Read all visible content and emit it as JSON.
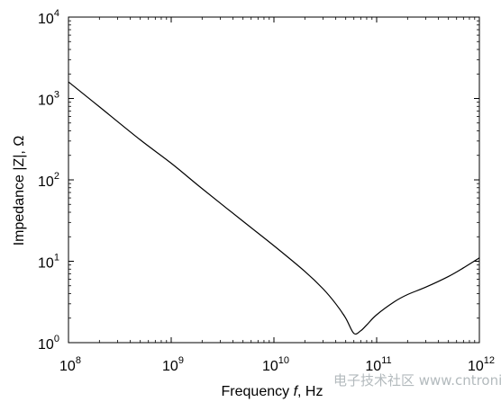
{
  "chart_data": {
    "type": "line",
    "title": "",
    "xlabel_parts": [
      "Frequency ",
      "f",
      ", Hz"
    ],
    "ylabel": "Impedance |Z|, Ω",
    "xscale": "log",
    "yscale": "log",
    "xlim": [
      100000000.0,
      1000000000000.0
    ],
    "ylim": [
      1,
      10000
    ],
    "grid": false,
    "x_ticks": [
      {
        "base": "10",
        "exp": "8"
      },
      {
        "base": "10",
        "exp": "9"
      },
      {
        "base": "10",
        "exp": "10"
      },
      {
        "base": "10",
        "exp": "11"
      },
      {
        "base": "10",
        "exp": "12"
      }
    ],
    "y_ticks": [
      {
        "base": "10",
        "exp": "0"
      },
      {
        "base": "10",
        "exp": "1"
      },
      {
        "base": "10",
        "exp": "2"
      },
      {
        "base": "10",
        "exp": "3"
      },
      {
        "base": "10",
        "exp": "4"
      }
    ],
    "series": [
      {
        "color": "#000000",
        "x": [
          100000000.0,
          200000000.0,
          500000000.0,
          1000000000.0,
          2000000000.0,
          5000000000.0,
          10000000000.0,
          20000000000.0,
          30000000000.0,
          40000000000.0,
          50000000000.0,
          60000000000.0,
          70000000000.0,
          80000000000.0,
          100000000000.0,
          150000000000.0,
          200000000000.0,
          300000000000.0,
          500000000000.0,
          700000000000.0,
          1000000000000.0
        ],
        "y": [
          1600,
          790,
          310,
          160,
          78,
          31,
          15.5,
          7.5,
          4.6,
          3.0,
          2.0,
          1.3,
          1.4,
          1.65,
          2.2,
          3.2,
          3.9,
          4.8,
          6.5,
          8.3,
          11
        ]
      }
    ]
  },
  "watermark": "电子技术社区 www.cntronics.com"
}
